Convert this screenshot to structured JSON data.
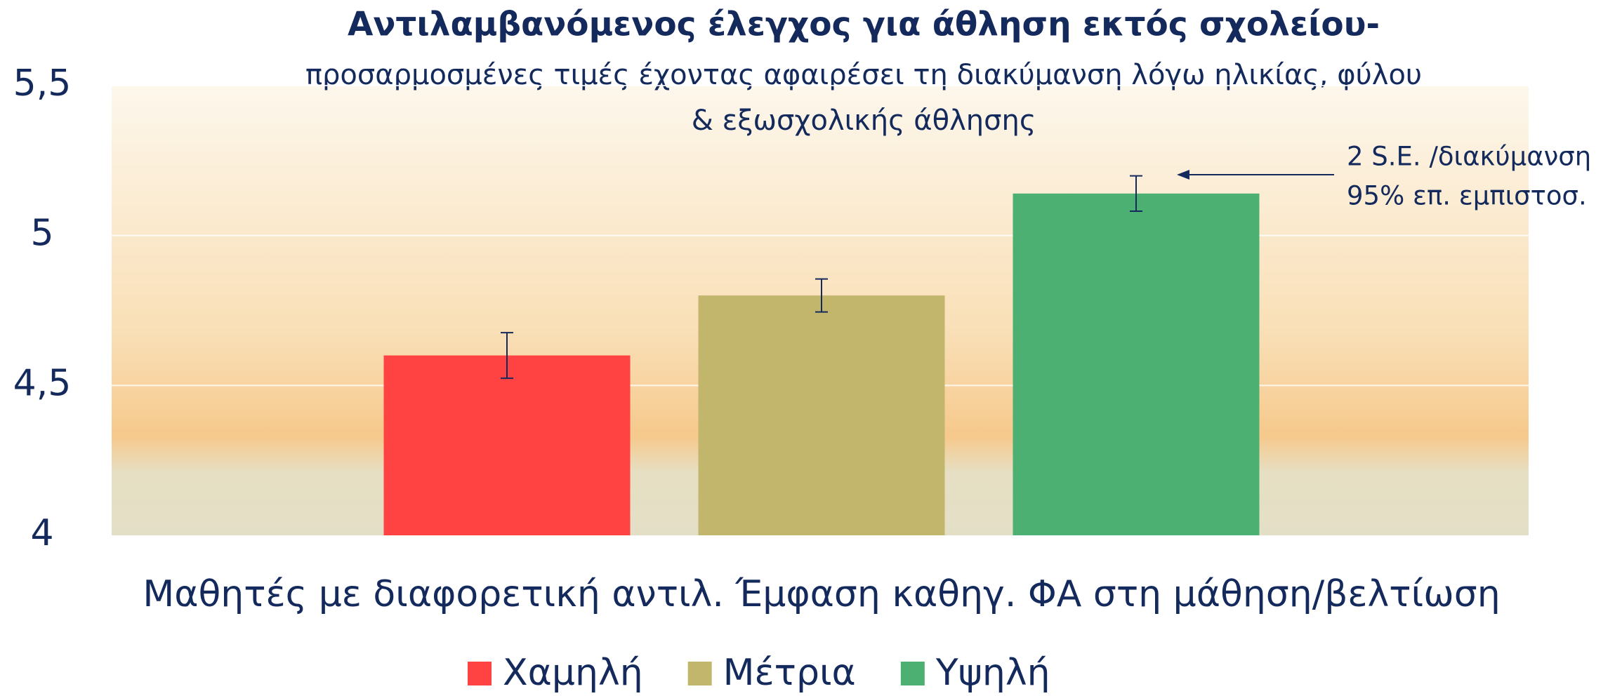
{
  "chart_data": {
    "type": "bar",
    "title": "Αντιλαμβανόμενος έλεγχος για άθληση εκτός σχολείου-",
    "subtitle": [
      "προσαρμοσμένες τιμές έχοντας αφαιρέσει τη διακύμανση λόγω ηλικίας, φύλου",
      "& εξωσχολικής άθλησης"
    ],
    "x_label": "Μαθητές με διαφορετική αντιλ. Έμφαση καθηγ. ΦΑ στη μάθηση/βελτίωση",
    "categories": [
      null
    ],
    "series": [
      {
        "name": "Χαμηλή",
        "color": "#ff4343",
        "values": [
          4.6
        ],
        "errors": [
          0.076
        ]
      },
      {
        "name": "Μέτρια",
        "color": "#c2b56c",
        "values": [
          4.8
        ],
        "errors": [
          0.055
        ]
      },
      {
        "name": "Υψηλή",
        "color": "#4cb073",
        "values": [
          5.14
        ],
        "errors": [
          0.059
        ]
      }
    ],
    "ylim": [
      4,
      5.5
    ],
    "yticks": [
      4,
      {
        "value": 4.5,
        "label": "4,5"
      },
      5,
      {
        "value": 5.5,
        "label": "5,5"
      }
    ],
    "grid": true,
    "annotation": [
      "2 S.E. /διακύμανση",
      "95% επ. εμπιστοσ."
    ]
  }
}
